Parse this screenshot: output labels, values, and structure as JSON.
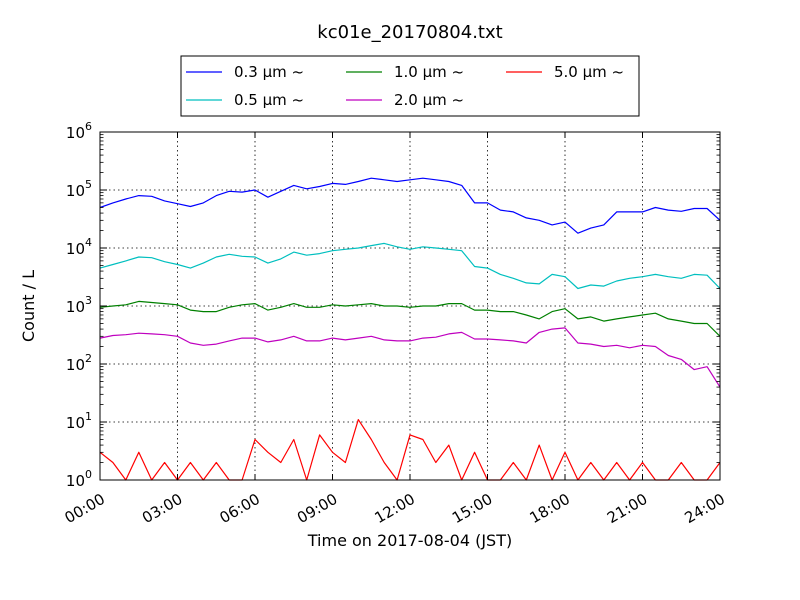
{
  "chart_data": {
    "type": "line",
    "title": "kc01e_20170804.txt",
    "xlabel": "Time on 2017-08-04 (JST)",
    "ylabel": "Count / L",
    "x_ticks": [
      "00:00",
      "03:00",
      "06:00",
      "09:00",
      "12:00",
      "15:00",
      "18:00",
      "21:00",
      "24:00"
    ],
    "y_scale": "log",
    "ylim": [
      1,
      1000000
    ],
    "xlim_hours": [
      0,
      24
    ],
    "y_ticks": [
      {
        "base": "10",
        "exp": "0"
      },
      {
        "base": "10",
        "exp": "1"
      },
      {
        "base": "10",
        "exp": "2"
      },
      {
        "base": "10",
        "exp": "3"
      },
      {
        "base": "10",
        "exp": "4"
      },
      {
        "base": "10",
        "exp": "5"
      },
      {
        "base": "10",
        "exp": "6"
      }
    ],
    "grid": true,
    "legend_position": "top-center",
    "legend_symbol": "~",
    "series": [
      {
        "name": "0.3 μm",
        "color": "#0000ff",
        "x": [
          0,
          0.5,
          1,
          1.5,
          2,
          2.5,
          3,
          3.5,
          4,
          4.5,
          5,
          5.5,
          6,
          6.5,
          7,
          7.5,
          8,
          8.5,
          9,
          9.5,
          10,
          10.5,
          11,
          11.5,
          12,
          12.5,
          13,
          13.5,
          14,
          14.5,
          15,
          15.5,
          16,
          16.5,
          17,
          17.5,
          18,
          18.5,
          19,
          19.5,
          20,
          20.5,
          21,
          21.5,
          22,
          22.5,
          23,
          23.5,
          24
        ],
        "y": [
          50000,
          60000,
          70000,
          80000,
          78000,
          65000,
          58000,
          52000,
          60000,
          80000,
          95000,
          92000,
          100000,
          75000,
          95000,
          120000,
          105000,
          115000,
          130000,
          125000,
          140000,
          160000,
          150000,
          140000,
          150000,
          160000,
          150000,
          140000,
          120000,
          60000,
          60000,
          45000,
          42000,
          33000,
          30000,
          25000,
          28000,
          18000,
          22000,
          25000,
          42000,
          42000,
          42000,
          50000,
          45000,
          43000,
          48000,
          48000,
          30000
        ]
      },
      {
        "name": "0.5 μm",
        "color": "#00bfbf",
        "x": [
          0,
          0.5,
          1,
          1.5,
          2,
          2.5,
          3,
          3.5,
          4,
          4.5,
          5,
          5.5,
          6,
          6.5,
          7,
          7.5,
          8,
          8.5,
          9,
          9.5,
          10,
          10.5,
          11,
          11.5,
          12,
          12.5,
          13,
          13.5,
          14,
          14.5,
          15,
          15.5,
          16,
          16.5,
          17,
          17.5,
          18,
          18.5,
          19,
          19.5,
          20,
          20.5,
          21,
          21.5,
          22,
          22.5,
          23,
          23.5,
          24
        ],
        "y": [
          4500,
          5200,
          6000,
          7000,
          6800,
          5800,
          5200,
          4500,
          5500,
          7000,
          7800,
          7200,
          7000,
          5500,
          6500,
          8500,
          7500,
          8000,
          9000,
          9500,
          10000,
          11000,
          12000,
          10500,
          9500,
          10500,
          10000,
          9500,
          9000,
          4800,
          4500,
          3500,
          3000,
          2500,
          2400,
          3500,
          3200,
          2000,
          2300,
          2200,
          2700,
          3000,
          3200,
          3500,
          3200,
          3000,
          3500,
          3400,
          2000
        ]
      },
      {
        "name": "1.0 μm",
        "color": "#008000",
        "x": [
          0,
          0.5,
          1,
          1.5,
          2,
          2.5,
          3,
          3.5,
          4,
          4.5,
          5,
          5.5,
          6,
          6.5,
          7,
          7.5,
          8,
          8.5,
          9,
          9.5,
          10,
          10.5,
          11,
          11.5,
          12,
          12.5,
          13,
          13.5,
          14,
          14.5,
          15,
          15.5,
          16,
          16.5,
          17,
          17.5,
          18,
          18.5,
          19,
          19.5,
          20,
          20.5,
          21,
          21.5,
          22,
          22.5,
          23,
          23.5,
          24
        ],
        "y": [
          950,
          1000,
          1050,
          1200,
          1150,
          1100,
          1050,
          850,
          800,
          800,
          950,
          1050,
          1100,
          850,
          950,
          1100,
          950,
          950,
          1050,
          1000,
          1050,
          1100,
          1000,
          1000,
          950,
          1000,
          1000,
          1100,
          1100,
          850,
          850,
          800,
          800,
          700,
          600,
          800,
          900,
          600,
          650,
          550,
          600,
          650,
          700,
          750,
          600,
          550,
          500,
          500,
          300
        ]
      },
      {
        "name": "2.0 μm",
        "color": "#bf00bf",
        "x": [
          0,
          0.5,
          1,
          1.5,
          2,
          2.5,
          3,
          3.5,
          4,
          4.5,
          5,
          5.5,
          6,
          6.5,
          7,
          7.5,
          8,
          8.5,
          9,
          9.5,
          10,
          10.5,
          11,
          11.5,
          12,
          12.5,
          13,
          13.5,
          14,
          14.5,
          15,
          15.5,
          16,
          16.5,
          17,
          17.5,
          18,
          18.5,
          19,
          19.5,
          20,
          20.5,
          21,
          21.5,
          22,
          22.5,
          23,
          23.5,
          24
        ],
        "y": [
          280,
          310,
          320,
          340,
          330,
          320,
          300,
          230,
          210,
          220,
          250,
          280,
          280,
          240,
          260,
          300,
          250,
          250,
          280,
          260,
          280,
          300,
          260,
          250,
          250,
          280,
          290,
          330,
          350,
          270,
          270,
          260,
          250,
          230,
          350,
          400,
          420,
          230,
          220,
          200,
          210,
          190,
          210,
          200,
          140,
          120,
          80,
          90,
          40
        ]
      },
      {
        "name": "5.0 μm",
        "color": "#ff0000",
        "x": [
          0,
          0.5,
          1,
          1.5,
          2,
          2.5,
          3,
          3.5,
          4,
          4.5,
          5,
          5.5,
          6,
          6.5,
          7,
          7.5,
          8,
          8.5,
          9,
          9.5,
          10,
          10.5,
          11,
          11.5,
          12,
          12.5,
          13,
          13.5,
          14,
          14.5,
          15,
          15.5,
          16,
          16.5,
          17,
          17.5,
          18,
          18.5,
          19,
          19.5,
          20,
          20.5,
          21,
          21.5,
          22,
          22.5,
          23,
          23.5,
          24
        ],
        "y": [
          3,
          2,
          1,
          3,
          1,
          2,
          1,
          2,
          1,
          2,
          1,
          1,
          5,
          3,
          2,
          5,
          1,
          6,
          3,
          2,
          11,
          5,
          2,
          1,
          6,
          5,
          2,
          4,
          1,
          3,
          1,
          1,
          2,
          1,
          4,
          1,
          3,
          1,
          2,
          1,
          2,
          1,
          2,
          1,
          1,
          2,
          1,
          1,
          2
        ]
      }
    ]
  }
}
